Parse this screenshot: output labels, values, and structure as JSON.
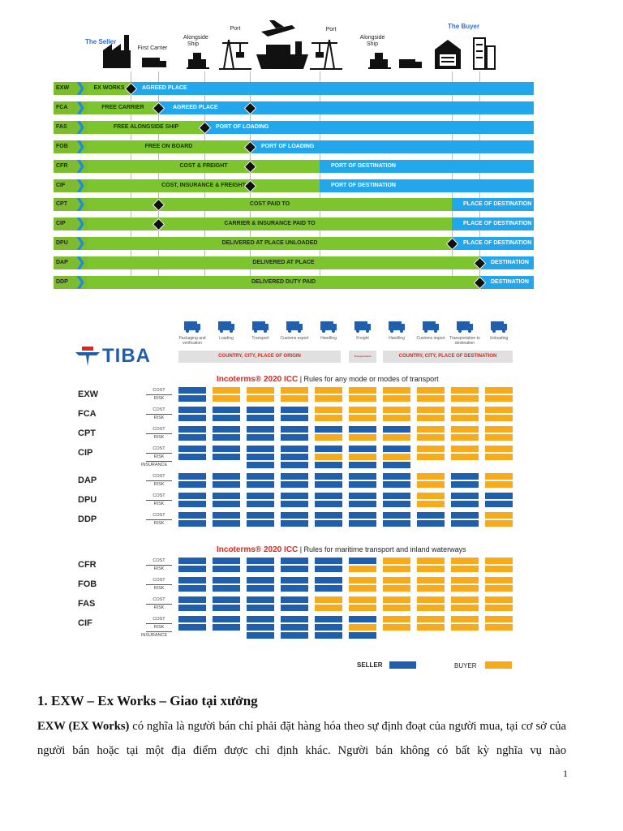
{
  "timeline": {
    "header_labels": {
      "seller": "The Seller",
      "first_carrier": "First Carrier",
      "alongside_ship_origin": "Alongside Ship",
      "port_origin": "Port",
      "port_destination": "Port",
      "alongside_ship_destination": "Alongside Ship",
      "buyer": "The Buyer"
    },
    "colors": {
      "seller_cost": "#7dc52e",
      "buyer_cost": "#22a7ec"
    },
    "rows": [
      {
        "code": "EXW",
        "seller_label": "EX WORKS",
        "buyer_label": "AGREED PLACE",
        "seller_until": "seller",
        "markers": [
          "seller"
        ]
      },
      {
        "code": "FCA",
        "seller_label": "FREE CARRIER",
        "buyer_label": "AGREED PLACE",
        "seller_until": "first-carrier",
        "markers": [
          "first-carrier",
          "on-board"
        ]
      },
      {
        "code": "FAS",
        "seller_label": "FREE ALONGSIDE SHIP",
        "buyer_label": "PORT OF LOADING",
        "seller_until": "alongside-ship",
        "markers": [
          "alongside-ship"
        ]
      },
      {
        "code": "FOB",
        "seller_label": "FREE  ON BOARD",
        "buyer_label": "PORT OF LOADING",
        "seller_until": "on-board",
        "markers": [
          "on-board"
        ]
      },
      {
        "code": "CFR",
        "seller_label": "COST & FREIGHT",
        "buyer_label": "PORT OF DESTINATION",
        "seller_until": "port-of-destination",
        "markers": [
          "on-board"
        ]
      },
      {
        "code": "CIF",
        "seller_label": "COST, INSURANCE & FREIGHT",
        "buyer_label": "PORT OF DESTINATION",
        "seller_until": "port-of-destination",
        "markers": [
          "on-board"
        ]
      },
      {
        "code": "CPT",
        "seller_label": "COST PAID TO",
        "buyer_label": "PLACE OF DESTINATION",
        "seller_until": "place-of-destination",
        "markers": [
          "first-carrier"
        ]
      },
      {
        "code": "CIP",
        "seller_label": "CARRIER & INSURANCE PAID TO",
        "buyer_label": "PLACE OF DESTINATION",
        "seller_until": "place-of-destination",
        "markers": [
          "first-carrier"
        ]
      },
      {
        "code": "DPU",
        "seller_label": "DELIVERED AT PLACE UNLOADED",
        "buyer_label": "PLACE OF DESTINATION",
        "seller_until": "place-of-destination",
        "markers": [
          "place-of-destination"
        ]
      },
      {
        "code": "DAP",
        "seller_label": "DELIVERED AT PLACE",
        "buyer_label": "DESTINATION",
        "seller_until": "destination",
        "markers": [
          "destination"
        ]
      },
      {
        "code": "DDP",
        "seller_label": "DELIVERED DUTY PAID",
        "buyer_label": "DESTINATION",
        "seller_until": "destination",
        "markers": [
          "destination"
        ]
      }
    ]
  },
  "tiba": {
    "logo": "TIBA",
    "stages": [
      "Packaging and verification",
      "Loading",
      "Transport",
      "Customs export",
      "Handling",
      "Freight",
      "Handling",
      "Customs import",
      "Transportation to destination",
      "Unloading"
    ],
    "origin_bar": "COUNTRY, CITY, PLACE OF ORIGIN",
    "transit_bar": "Transportation",
    "destination_bar": "COUNTRY, CITY, PLACE OF DESTINATION",
    "colors": {
      "seller": "#1f5fad",
      "buyer": "#f6aa1c",
      "accent": "#e2231a"
    },
    "sections": [
      {
        "title_main": "Incoterms® 2020 ICC",
        "title_sub": "| Rules for any mode or modes of transport",
        "terms": [
          {
            "code": "EXW",
            "rows": [
              {
                "label": "COST",
                "cells": "SBBBBBBBBB"
              },
              {
                "label": "RISK",
                "cells": "SBBBBBBBBB"
              }
            ]
          },
          {
            "code": "FCA",
            "rows": [
              {
                "label": "COST",
                "cells": "SSSSBBBBBB"
              },
              {
                "label": "RISK",
                "cells": "SSSSBBBBBB"
              }
            ]
          },
          {
            "code": "CPT",
            "rows": [
              {
                "label": "COST",
                "cells": "SSSSSSSBBB"
              },
              {
                "label": "RISK",
                "cells": "SSSSBBBBBB"
              }
            ]
          },
          {
            "code": "CIP",
            "rows": [
              {
                "label": "COST",
                "cells": "SSSSSSSBBB"
              },
              {
                "label": "RISK",
                "cells": "SSSSBBBBBB"
              },
              {
                "label": "INSURANCE",
                "cells": "--SSSSS---"
              }
            ]
          },
          {
            "code": "DAP",
            "rows": [
              {
                "label": "COST",
                "cells": "SSSSSSSBSB"
              },
              {
                "label": "RISK",
                "cells": "SSSSSSSBSB"
              }
            ]
          },
          {
            "code": "DPU",
            "rows": [
              {
                "label": "COST",
                "cells": "SSSSSSSBSS"
              },
              {
                "label": "RISK",
                "cells": "SSSSSSSBSS"
              }
            ]
          },
          {
            "code": "DDP",
            "rows": [
              {
                "label": "COST",
                "cells": "SSSSSSSSSB"
              },
              {
                "label": "RISK",
                "cells": "SSSSSSSSSB"
              }
            ]
          }
        ]
      },
      {
        "title_main": "Incoterms® 2020 ICC",
        "title_sub": "| Rules for maritime transport and inland waterways",
        "terms": [
          {
            "code": "CFR",
            "rows": [
              {
                "label": "COST",
                "cells": "SSSSSSBBBB"
              },
              {
                "label": "RISK",
                "cells": "SSSSSBBBBB"
              }
            ]
          },
          {
            "code": "FOB",
            "rows": [
              {
                "label": "COST",
                "cells": "SSSSSBBBBB"
              },
              {
                "label": "RISK",
                "cells": "SSSSSBBBBB"
              }
            ]
          },
          {
            "code": "FAS",
            "rows": [
              {
                "label": "COST",
                "cells": "SSSSBBBBBB"
              },
              {
                "label": "RISK",
                "cells": "SSSSBBBBBB"
              }
            ]
          },
          {
            "code": "CIF",
            "rows": [
              {
                "label": "COST",
                "cells": "SSSSSSBBBB"
              },
              {
                "label": "RISK",
                "cells": "SSSSSBBBBB"
              },
              {
                "label": "INSURANCE",
                "cells": "--SSSS----"
              }
            ]
          }
        ]
      }
    ],
    "legend": {
      "seller": "SELLER",
      "buyer": "BUYER"
    }
  },
  "document": {
    "heading": "1. EXW – Ex Works – Giao tại xưởng",
    "para_bold": "EXW (EX Works)",
    "para_text": " có nghĩa là người bán chỉ phải đặt hàng hóa theo sự định đoạt của người mua, tại cơ sở của người bán hoặc tại một địa điểm được chỉ định khác. Người bán không có bất kỳ nghĩa vụ nào",
    "page_number": "1"
  }
}
